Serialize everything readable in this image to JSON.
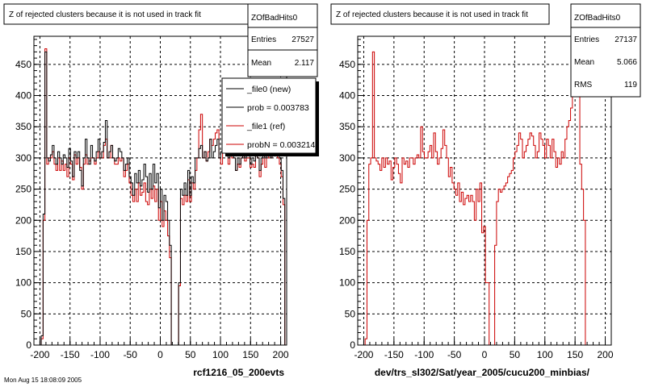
{
  "footer_text": "Mon Aug 15 18:08:09 2005",
  "colors": {
    "new": "#000000",
    "ref": "#cc0000",
    "grid": "#000000",
    "shadow": "#000000"
  },
  "chart_data": [
    {
      "type": "histogram",
      "title": "Z of rejected clusters  because it is not used in track fit",
      "xlabel": "rcf1216_05_200evts",
      "ylabel": "",
      "xlim": [
        -210,
        210
      ],
      "ylim": [
        0,
        495
      ],
      "xticks": [
        "-200",
        "-150",
        "-100",
        "-50",
        "0",
        "50",
        "100",
        "150",
        "200"
      ],
      "yticks": [
        "0",
        "50",
        "100",
        "150",
        "200",
        "250",
        "300",
        "350",
        "400",
        "450"
      ],
      "grid": true,
      "stats": {
        "name": "ZOfBadHits0",
        "entries_label": "Entries",
        "entries": "27527",
        "mean_label": "Mean",
        "mean": "2.117"
      },
      "legend": {
        "placement": "top-right",
        "entries": [
          "_file0 (new)",
          "prob = 0.003783",
          "_file1 (ref)",
          "probN = 0.003214"
        ]
      },
      "bin_edges": [
        -210,
        210
      ],
      "series": [
        {
          "name": "_file0 (new)",
          "values": [
            0,
            0,
            0,
            0,
            15,
            210,
            470,
            300,
            295,
            305,
            320,
            300,
            290,
            310,
            300,
            290,
            305,
            300,
            285,
            315,
            295,
            270,
            310,
            300,
            310,
            280,
            255,
            300,
            330,
            300,
            290,
            320,
            300,
            295,
            310,
            330,
            300,
            310,
            325,
            360,
            300,
            310,
            320,
            300,
            295,
            300,
            315,
            310,
            300,
            280,
            290,
            300,
            270,
            260,
            240,
            275,
            260,
            280,
            255,
            265,
            290,
            270,
            245,
            275,
            250,
            290,
            260,
            275,
            220,
            250,
            200,
            240,
            230,
            200,
            160,
            0,
            0,
            0,
            0,
            100,
            250,
            240,
            260,
            240,
            280,
            240,
            270,
            260,
            300,
            300,
            315,
            320,
            300,
            310,
            295,
            300,
            330,
            300,
            310,
            320,
            330,
            300,
            310,
            330,
            345,
            320,
            300,
            340,
            310,
            300,
            280,
            300,
            290,
            300,
            320,
            300,
            310,
            305,
            290,
            300,
            295,
            315,
            300,
            280,
            300,
            325,
            300,
            340,
            310,
            300,
            320,
            330,
            350,
            320,
            300,
            280,
            235,
            0
          ]
        },
        {
          "name": "_file1 (ref)",
          "values": [
            0,
            0,
            0,
            0,
            10,
            200,
            475,
            290,
            300,
            300,
            310,
            290,
            280,
            300,
            280,
            295,
            280,
            290,
            270,
            300,
            290,
            265,
            305,
            290,
            300,
            285,
            250,
            290,
            305,
            290,
            295,
            300,
            300,
            290,
            300,
            310,
            300,
            300,
            320,
            330,
            300,
            300,
            320,
            300,
            290,
            290,
            300,
            295,
            300,
            270,
            280,
            290,
            260,
            240,
            230,
            250,
            230,
            260,
            240,
            245,
            260,
            230,
            225,
            250,
            235,
            255,
            230,
            250,
            200,
            230,
            190,
            215,
            200,
            175,
            140,
            0,
            0,
            0,
            0,
            95,
            235,
            225,
            240,
            230,
            265,
            230,
            260,
            250,
            280,
            300,
            345,
            370,
            300,
            310,
            295,
            310,
            330,
            320,
            330,
            340,
            345,
            300,
            290,
            330,
            330,
            310,
            290,
            320,
            300,
            300,
            280,
            290,
            285,
            300,
            305,
            295,
            300,
            300,
            285,
            290,
            285,
            305,
            300,
            270,
            290,
            320,
            285,
            335,
            300,
            300,
            315,
            330,
            320,
            300,
            290,
            270,
            225,
            0
          ]
        }
      ]
    },
    {
      "type": "histogram",
      "title": "Z of rejected clusters  because it is not used in track fit",
      "xlabel": "dev/trs_sl302/Sat/year_2005/cucu200_minbias/",
      "ylabel": "",
      "xlim": [
        -210,
        210
      ],
      "ylim": [
        0,
        495
      ],
      "xticks": [
        "-200",
        "-150",
        "-100",
        "-50",
        "0",
        "50",
        "100",
        "150",
        "200"
      ],
      "yticks": [
        "0",
        "50",
        "100",
        "150",
        "200",
        "250",
        "300",
        "350",
        "400",
        "450"
      ],
      "grid": true,
      "stats": {
        "name": "ZOfBadHits0",
        "entries_label": "Entries",
        "entries": "27137",
        "mean_label": "Mean",
        "mean": "5.066",
        "rms_label": "RMS",
        "rms": "119"
      },
      "bin_edges": [
        -210,
        210
      ],
      "series": [
        {
          "name": "_file1 (ref)",
          "values": [
            0,
            0,
            0,
            0,
            10,
            200,
            290,
            300,
            470,
            300,
            295,
            290,
            280,
            300,
            285,
            300,
            290,
            295,
            265,
            285,
            300,
            290,
            275,
            260,
            300,
            290,
            295,
            285,
            300,
            300,
            290,
            300,
            305,
            300,
            350,
            310,
            300,
            300,
            310,
            320,
            300,
            340,
            310,
            290,
            300,
            315,
            345,
            320,
            300,
            270,
            285,
            260,
            250,
            240,
            260,
            230,
            245,
            225,
            235,
            240,
            230,
            240,
            230,
            200,
            250,
            230,
            260,
            180,
            190,
            100,
            100,
            0,
            0,
            0,
            160,
            230,
            250,
            245,
            250,
            255,
            260,
            270,
            275,
            280,
            300,
            310,
            320,
            340,
            330,
            300,
            310,
            320,
            330,
            340,
            335,
            320,
            300,
            310,
            340,
            330,
            320,
            300,
            330,
            320,
            300,
            330,
            310,
            285,
            300,
            290,
            310,
            300,
            330,
            350,
            360,
            380,
            400,
            420,
            440,
            460,
            290,
            250,
            200,
            0,
            0,
            0,
            0,
            0,
            0,
            0,
            0,
            0,
            0,
            0,
            0,
            0,
            0
          ]
        }
      ]
    }
  ]
}
